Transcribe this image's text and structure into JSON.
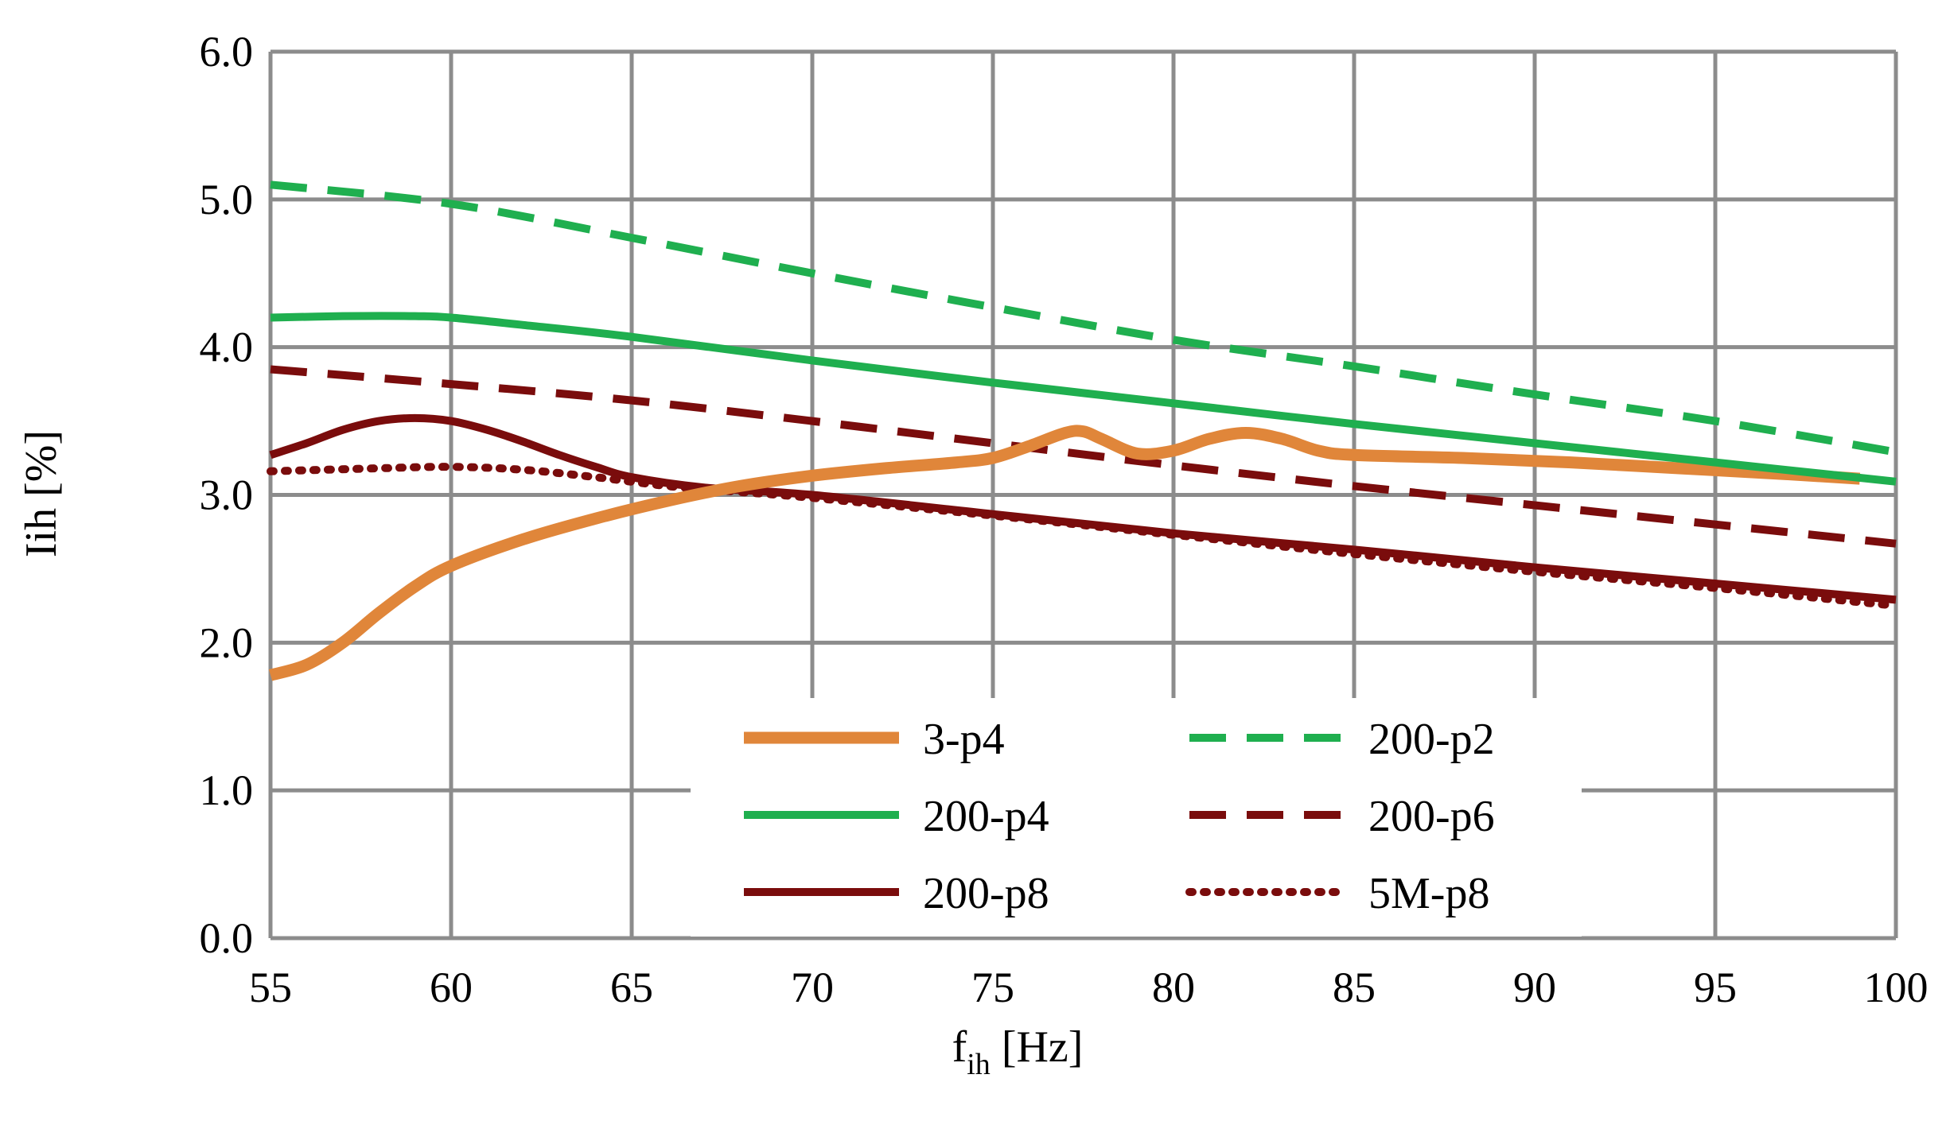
{
  "chart_data": {
    "type": "line",
    "title": "",
    "xlabel": "f",
    "xlabel_sub": "ih",
    "xlabel_unit": " [Hz]",
    "ylabel": "Iih [%]",
    "xlim": [
      55,
      100
    ],
    "ylim": [
      0.0,
      6.0
    ],
    "xticks": [
      55,
      60,
      65,
      70,
      75,
      80,
      85,
      90,
      95,
      100
    ],
    "xtick_labels": [
      "55",
      "60",
      "65",
      "70",
      "75",
      "80",
      "85",
      "90",
      "95",
      "100"
    ],
    "yticks": [
      0,
      1,
      2,
      3,
      4,
      5,
      6
    ],
    "ytick_labels": [
      "0.0",
      "1.0",
      "2.0",
      "3.0",
      "4.0",
      "5.0",
      "6.0"
    ],
    "grid": true,
    "legend_position": "bottom-center",
    "series": [
      {
        "name": "3-p4",
        "color": "#E0863A",
        "style": "solid",
        "weight": "thick",
        "x": [
          55,
          56,
          57,
          58,
          59,
          60,
          62,
          64,
          66,
          68,
          70,
          72,
          74,
          75,
          76,
          77,
          77.5,
          78,
          79,
          80,
          81,
          82,
          83,
          84,
          85,
          88,
          91,
          94,
          97,
          99
        ],
        "y": [
          1.78,
          1.85,
          2.0,
          2.2,
          2.38,
          2.52,
          2.7,
          2.84,
          2.96,
          3.06,
          3.13,
          3.18,
          3.22,
          3.25,
          3.33,
          3.42,
          3.43,
          3.38,
          3.28,
          3.3,
          3.38,
          3.42,
          3.38,
          3.3,
          3.27,
          3.25,
          3.22,
          3.18,
          3.14,
          3.11
        ]
      },
      {
        "name": "200-p4",
        "color": "#1FAF4F",
        "style": "solid",
        "weight": "normal",
        "x": [
          55,
          57,
          59,
          60,
          62,
          65,
          70,
          75,
          80,
          85,
          90,
          95,
          100
        ],
        "y": [
          4.2,
          4.21,
          4.21,
          4.2,
          4.15,
          4.07,
          3.91,
          3.76,
          3.62,
          3.48,
          3.35,
          3.22,
          3.09
        ]
      },
      {
        "name": "200-p8",
        "color": "#7A0C0C",
        "style": "solid",
        "weight": "normal",
        "x": [
          55,
          56,
          57,
          58,
          59,
          60,
          61,
          62,
          63,
          64,
          65,
          67,
          70,
          75,
          80,
          85,
          90,
          95,
          100
        ],
        "y": [
          3.27,
          3.35,
          3.44,
          3.5,
          3.52,
          3.5,
          3.44,
          3.36,
          3.27,
          3.19,
          3.12,
          3.05,
          3.0,
          2.87,
          2.74,
          2.63,
          2.51,
          2.4,
          2.29
        ]
      },
      {
        "name": "200-p2",
        "color": "#1FAF4F",
        "style": "dashed",
        "weight": "normal",
        "x": [
          55,
          60,
          65,
          70,
          75,
          80,
          85,
          90,
          95,
          100
        ],
        "y": [
          5.1,
          4.97,
          4.74,
          4.5,
          4.27,
          4.05,
          3.87,
          3.68,
          3.5,
          3.29
        ]
      },
      {
        "name": "200-p6",
        "color": "#7A0C0C",
        "style": "dashed",
        "weight": "normal",
        "x": [
          55,
          60,
          65,
          70,
          75,
          80,
          85,
          90,
          95,
          100
        ],
        "y": [
          3.85,
          3.75,
          3.64,
          3.5,
          3.35,
          3.2,
          3.06,
          2.93,
          2.8,
          2.67
        ]
      },
      {
        "name": "5M-p8",
        "color": "#7A0C0C",
        "style": "dotted",
        "weight": "normal",
        "x": [
          55,
          58,
          60,
          62,
          64,
          66,
          68,
          70,
          75,
          80,
          85,
          90,
          95,
          100
        ],
        "y": [
          3.16,
          3.18,
          3.19,
          3.17,
          3.12,
          3.06,
          3.02,
          2.98,
          2.86,
          2.73,
          2.6,
          2.48,
          2.37,
          2.25
        ]
      }
    ],
    "legend_order": [
      "3-p4",
      "200-p2",
      "200-p4",
      "200-p6",
      "200-p8",
      "5M-p8"
    ]
  }
}
